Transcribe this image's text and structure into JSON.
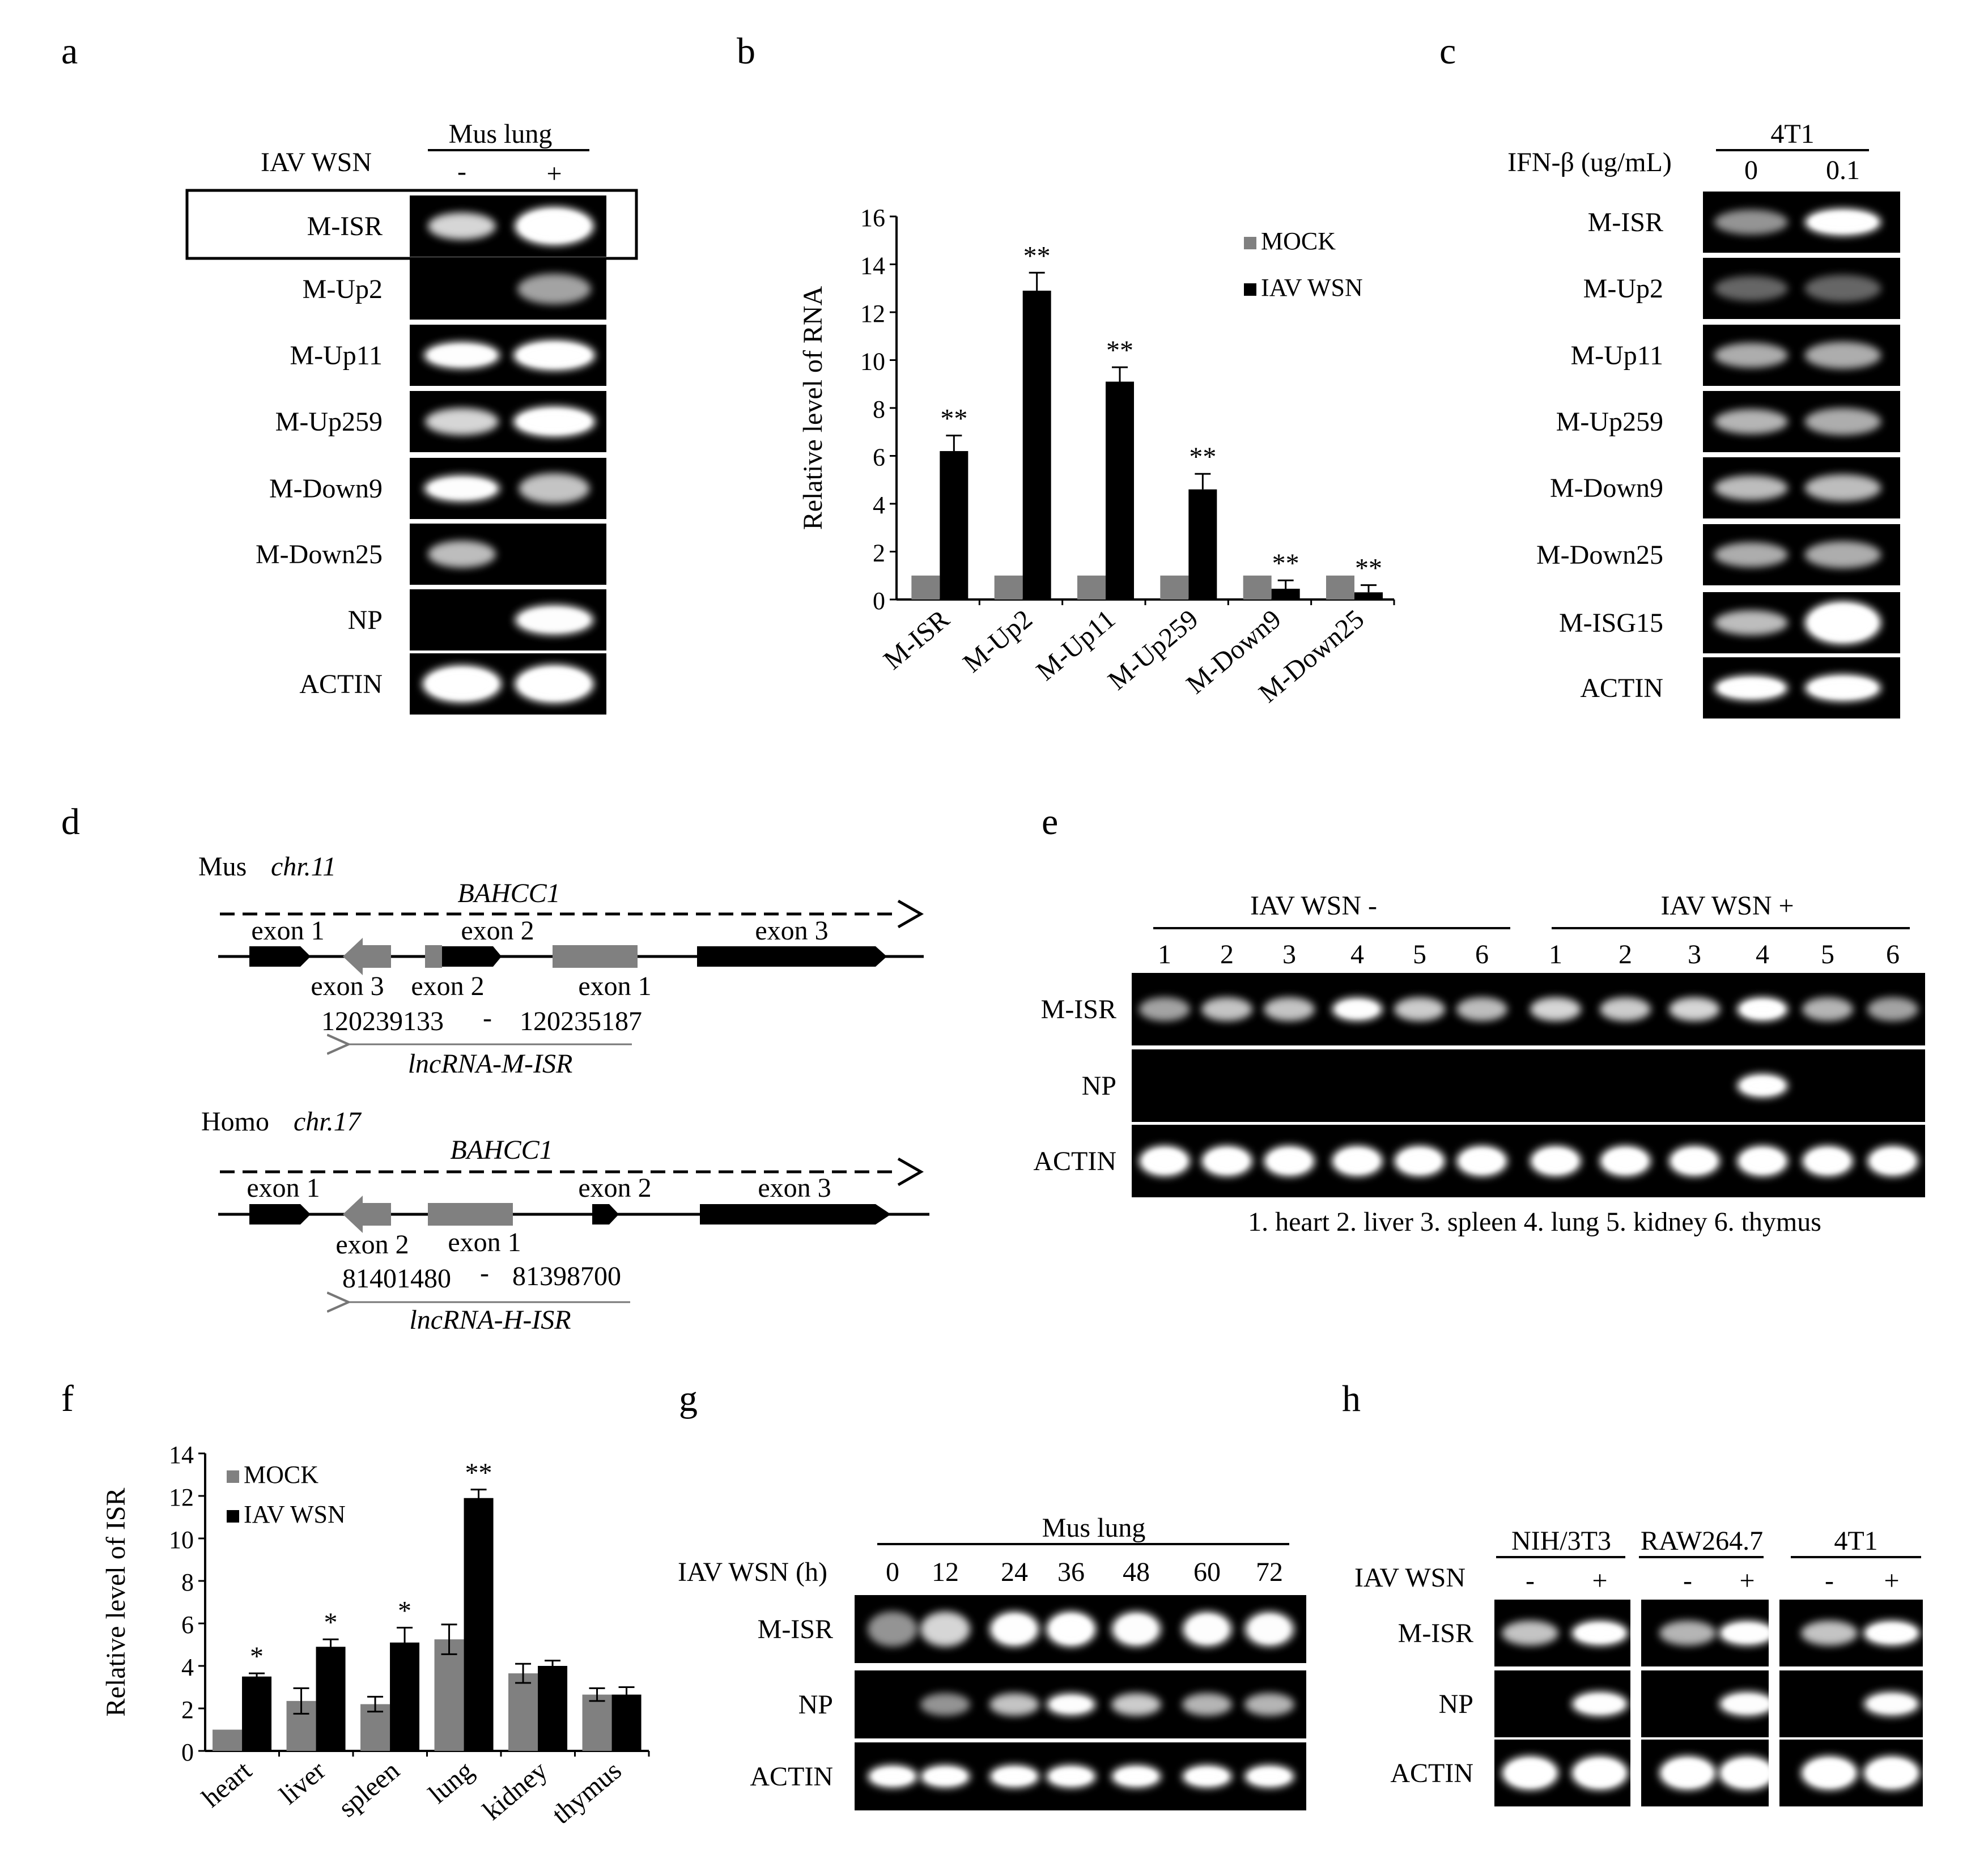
{
  "panels": {
    "a": {
      "letter": "a",
      "header": "Mus lung",
      "condition_label": "IAV WSN",
      "lane_labels": [
        "-",
        "+"
      ],
      "rows": [
        "M-ISR",
        "M-Up2",
        "M-Up11",
        "M-Up259",
        "M-Down9",
        "M-Down25",
        "NP",
        "ACTIN"
      ],
      "highlighted_row": "M-ISR"
    },
    "b": {
      "letter": "b",
      "significance": [
        "**",
        "**",
        "**",
        "**",
        "**",
        "**"
      ]
    },
    "c": {
      "letter": "c",
      "header": "4T1",
      "condition_label": "IFN-β (ug/mL)",
      "lane_labels": [
        "0",
        "0.1"
      ],
      "rows": [
        "M-ISR",
        "M-Up2",
        "M-Up11",
        "M-Up259",
        "M-Down9",
        "M-Down25",
        "M-ISG15",
        "ACTIN"
      ]
    },
    "d": {
      "letter": "d",
      "mus": {
        "organism": "Mus",
        "chromosome": "chr.11",
        "gene": "BAHCC1",
        "exons_top": [
          "exon 1",
          "exon 2",
          "exon 3"
        ],
        "exons_bottom": [
          "exon 3",
          "exon 2",
          "exon 1"
        ],
        "coord_start": "120239133",
        "coord_sep": "-",
        "coord_end": "120235187",
        "lncrna": "lncRNA-M-ISR"
      },
      "homo": {
        "organism": "Homo",
        "chromosome": "chr.17",
        "gene": "BAHCC1",
        "exons_top": [
          "exon 1",
          "exon 2",
          "exon 3"
        ],
        "exons_bottom": [
          "exon 2",
          "exon 1"
        ],
        "coord_start": "81401480",
        "coord_sep": "-",
        "coord_end": "81398700",
        "lncrna": "lncRNA-H-ISR"
      }
    },
    "e": {
      "letter": "e",
      "group_minus": "IAV WSN -",
      "group_plus": "IAV WSN +",
      "lane_numbers": [
        "1",
        "2",
        "3",
        "4",
        "5",
        "6",
        "1",
        "2",
        "3",
        "4",
        "5",
        "6"
      ],
      "rows": [
        "M-ISR",
        "NP",
        "ACTIN"
      ],
      "caption": "1. heart 2. liver 3. spleen 4. lung 5. kidney 6. thymus"
    },
    "f": {
      "letter": "f",
      "significance": [
        "*",
        "*",
        "*",
        "**",
        "",
        ""
      ]
    },
    "g": {
      "letter": "g",
      "header": "Mus lung",
      "condition_label": "IAV WSN (h)",
      "lane_labels": [
        "0",
        "12",
        "24",
        "36",
        "48",
        "60",
        "72"
      ],
      "rows": [
        "M-ISR",
        "NP",
        "ACTIN"
      ]
    },
    "h": {
      "letter": "h",
      "cell_lines": [
        "NIH/3T3",
        "RAW264.7",
        "4T1"
      ],
      "condition_label": "IAV WSN",
      "lane_labels": [
        "-",
        "+"
      ],
      "rows": [
        "M-ISR",
        "NP",
        "ACTIN"
      ]
    }
  },
  "chart_data": [
    {
      "type": "bar",
      "panel": "b",
      "categories": [
        "M-ISR",
        "M-Up2",
        "M-Up11",
        "M-Up259",
        "M-Down9",
        "M-Down25"
      ],
      "series": [
        {
          "name": "MOCK",
          "values": [
            1,
            1,
            1,
            1,
            1,
            1
          ],
          "color": "#808080"
        },
        {
          "name": "IAV WSN",
          "values": [
            6.2,
            12.9,
            9.1,
            4.6,
            0.45,
            0.3
          ],
          "errors": [
            0.65,
            0.75,
            0.6,
            0.65,
            0.35,
            0.3
          ],
          "color": "#000000"
        }
      ],
      "title": "",
      "xlabel": "",
      "ylabel": "Relative level of RNA",
      "ylim": [
        0,
        16
      ],
      "yticks": [
        0,
        2,
        4,
        6,
        8,
        10,
        12,
        14,
        16
      ],
      "legend": "top-right",
      "grid": false
    },
    {
      "type": "bar",
      "panel": "f",
      "categories": [
        "heart",
        "liver",
        "spleen",
        "lung",
        "kidney",
        "thymus"
      ],
      "series": [
        {
          "name": "MOCK",
          "values": [
            1,
            2.35,
            2.2,
            5.25,
            3.65,
            2.65
          ],
          "errors": [
            0,
            0.6,
            0.35,
            0.7,
            0.45,
            0.3
          ],
          "color": "#808080"
        },
        {
          "name": "IAV WSN",
          "values": [
            3.5,
            4.9,
            5.1,
            11.9,
            4.0,
            2.65
          ],
          "errors": [
            0.15,
            0.35,
            0.7,
            0.4,
            0.25,
            0.35
          ],
          "color": "#000000"
        }
      ],
      "title": "",
      "xlabel": "",
      "ylabel": "Relative level of ISR",
      "ylim": [
        0,
        14
      ],
      "yticks": [
        0,
        2,
        4,
        6,
        8,
        10,
        12,
        14
      ],
      "legend": "top-left",
      "grid": false
    }
  ]
}
